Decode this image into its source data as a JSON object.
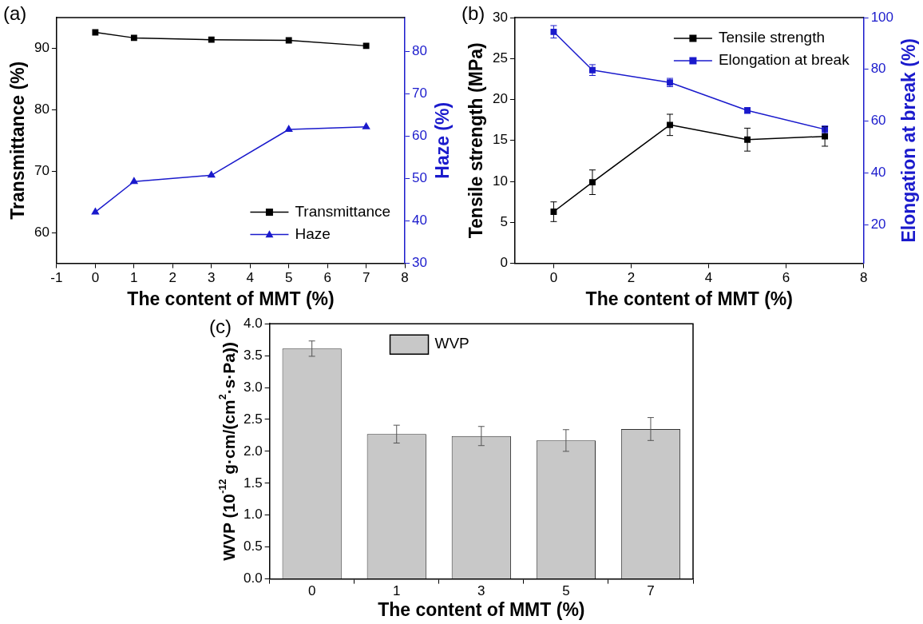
{
  "chart_data": [
    {
      "type": "line",
      "title": "(a)",
      "xlabel": "The content of MMT (%)",
      "ylabel": "Transmittance (%)",
      "y2label": "Haze (%)",
      "x": [
        0,
        1,
        3,
        5,
        7
      ],
      "series": [
        {
          "name": "Transmittance",
          "color": "#000000",
          "marker": "square",
          "values": [
            92.6,
            91.7,
            91.4,
            91.3,
            90.4
          ]
        },
        {
          "name": "Haze",
          "color": "#1a1acc",
          "marker": "triangle",
          "axis": "y2",
          "values": [
            42.1,
            49.3,
            50.8,
            61.6,
            62.2
          ]
        }
      ],
      "xlim": [
        -1,
        8
      ],
      "xticks": [
        -1,
        0,
        1,
        2,
        3,
        4,
        5,
        6,
        7,
        8
      ],
      "ylim": [
        55,
        95
      ],
      "yticks": [
        60,
        70,
        80,
        90
      ],
      "y2lim": [
        30,
        88
      ],
      "y2ticks": [
        30,
        40,
        50,
        60,
        70,
        80
      ],
      "legend": "bottom right",
      "grid": false
    },
    {
      "type": "line",
      "title": "(b)",
      "xlabel": "The content of MMT (%)",
      "ylabel": "Tensile strength (MPa)",
      "y2label": "Elongation at break (%)",
      "x": [
        0,
        1,
        3,
        5,
        7
      ],
      "series": [
        {
          "name": "Tensile strength",
          "color": "#000000",
          "marker": "square",
          "values": [
            6.3,
            9.9,
            16.9,
            15.1,
            15.5
          ],
          "errors": [
            1.2,
            1.5,
            1.3,
            1.4,
            1.2
          ]
        },
        {
          "name": "Elongation at break",
          "color": "#1a1acc",
          "marker": "square",
          "axis": "y2",
          "values": [
            94.5,
            79.7,
            74.9,
            64.1,
            56.8
          ],
          "errors": [
            2.4,
            2.1,
            1.6,
            1.1,
            1.3
          ]
        }
      ],
      "xlim": [
        -1,
        8
      ],
      "xticks": [
        0,
        2,
        4,
        6,
        8
      ],
      "ylim": [
        0,
        30
      ],
      "yticks": [
        0,
        5,
        10,
        15,
        20,
        25,
        30
      ],
      "y2lim": [
        5,
        100
      ],
      "y2ticks": [
        20,
        40,
        60,
        80,
        100
      ],
      "legend": "top right",
      "grid": false
    },
    {
      "type": "bar",
      "title": "(c)",
      "xlabel": "The content of MMT (%)",
      "ylabel": "WVP (10$^{-12}$ g·cm/(cm$^{2}$·s·Pa))",
      "categories": [
        "0",
        "1",
        "3",
        "5",
        "7"
      ],
      "series": [
        {
          "name": "WVP",
          "color": "#c8c8c8",
          "values": [
            3.61,
            2.27,
            2.24,
            2.17,
            2.35
          ],
          "errors": [
            0.12,
            0.14,
            0.15,
            0.17,
            0.18
          ]
        }
      ],
      "ylim": [
        0,
        4
      ],
      "yticks": [
        {
          "value": 0,
          "label": "0.0"
        },
        0.5,
        {
          "value": 1,
          "label": "1.0"
        },
        1.5,
        {
          "value": 2,
          "label": "2.0"
        },
        2.5,
        {
          "value": 3,
          "label": "3.0"
        },
        3.5,
        {
          "value": 4,
          "label": "4.0"
        }
      ],
      "legend": "top",
      "grid": false
    }
  ]
}
